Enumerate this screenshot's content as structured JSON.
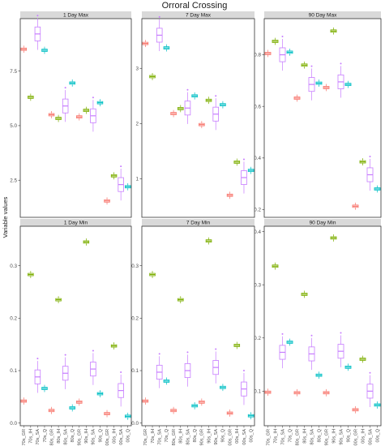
{
  "chart_data": {
    "type": "boxplot",
    "title": "Orroral Crossing",
    "ylabel": "Variable values",
    "xlabel": "",
    "categories": [
      "70s_GR",
      "70s_IH",
      "70s_SA",
      "70s_Q",
      "80s_GR",
      "80s_IH",
      "80s_SA",
      "80s_Q",
      "90s_GR",
      "90s_IH",
      "90s_SA",
      "90s_Q",
      "00s_GR",
      "00s_IH",
      "00s_SA",
      "00s_Q"
    ],
    "category_colors": [
      "#f8766d",
      "#7cae00",
      "#c77cff",
      "#00bfc4",
      "#f8766d",
      "#7cae00",
      "#c77cff",
      "#00bfc4",
      "#f8766d",
      "#7cae00",
      "#c77cff",
      "#00bfc4",
      "#f8766d",
      "#7cae00",
      "#c77cff",
      "#00bfc4"
    ],
    "panels": [
      {
        "name": "1 Day Max",
        "ylim": [
          0.8,
          9.9
        ],
        "yticks": [
          2.5,
          5.0,
          7.5
        ],
        "ytick_labels": [
          "2.5",
          "5.0",
          "7.5"
        ],
        "values": [
          8.5,
          6.3,
          9.2,
          8.45,
          5.5,
          5.33,
          5.9,
          6.95,
          5.4,
          5.7,
          5.45,
          6.05,
          1.55,
          2.7,
          2.3,
          2.2
        ]
      },
      {
        "name": "7 Day Max",
        "ylim": [
          0.3,
          3.9
        ],
        "yticks": [
          1,
          2,
          3
        ],
        "ytick_labels": [
          "1",
          "2",
          "3"
        ],
        "values": [
          3.45,
          2.85,
          3.6,
          3.37,
          2.18,
          2.27,
          2.28,
          2.5,
          1.98,
          2.42,
          2.17,
          2.34,
          0.7,
          1.3,
          1.02,
          1.15
        ]
      },
      {
        "name": "90 Day Max",
        "ylim": [
          0.17,
          0.94
        ],
        "yticks": [
          0.2,
          0.4,
          0.6,
          0.8
        ],
        "ytick_labels": [
          "0.2",
          "0.4",
          "0.6",
          "0.8"
        ],
        "values": [
          0.805,
          0.852,
          0.8,
          0.81,
          0.632,
          0.76,
          0.685,
          0.69,
          0.673,
          0.892,
          0.695,
          0.685,
          0.213,
          0.385,
          0.335,
          0.28
        ]
      },
      {
        "name": "1 Day Min",
        "ylim": [
          -0.005,
          0.375
        ],
        "yticks": [
          0.0,
          0.1,
          0.2,
          0.3
        ],
        "ytick_labels": [
          "0.0",
          "0.1",
          "0.2",
          "0.3"
        ],
        "values": [
          0.042,
          0.283,
          0.088,
          0.066,
          0.024,
          0.235,
          0.095,
          0.029,
          0.04,
          0.345,
          0.103,
          0.056,
          0.018,
          0.147,
          0.062,
          0.013
        ]
      },
      {
        "name": "7 Day Min",
        "ylim": [
          -0.005,
          0.375
        ],
        "yticks": [
          0.0,
          0.1,
          0.2,
          0.3
        ],
        "ytick_labels": [
          "0.0",
          "0.1",
          "0.2",
          "0.3"
        ],
        "values": [
          0.042,
          0.283,
          0.097,
          0.08,
          0.024,
          0.235,
          0.1,
          0.033,
          0.04,
          0.347,
          0.106,
          0.068,
          0.019,
          0.148,
          0.065,
          0.014
        ]
      },
      {
        "name": "90 Day Min",
        "ylim": [
          0.035,
          0.41
        ],
        "yticks": [
          0.1,
          0.2,
          0.3,
          0.4
        ],
        "ytick_labels": [
          "0.1",
          "0.2",
          "0.3",
          "0.4"
        ],
        "values": [
          0.098,
          0.335,
          0.173,
          0.192,
          0.097,
          0.282,
          0.17,
          0.13,
          0.097,
          0.388,
          0.175,
          0.145,
          0.065,
          0.16,
          0.1,
          0.074
        ]
      }
    ],
    "grid": false,
    "legend": "none"
  }
}
